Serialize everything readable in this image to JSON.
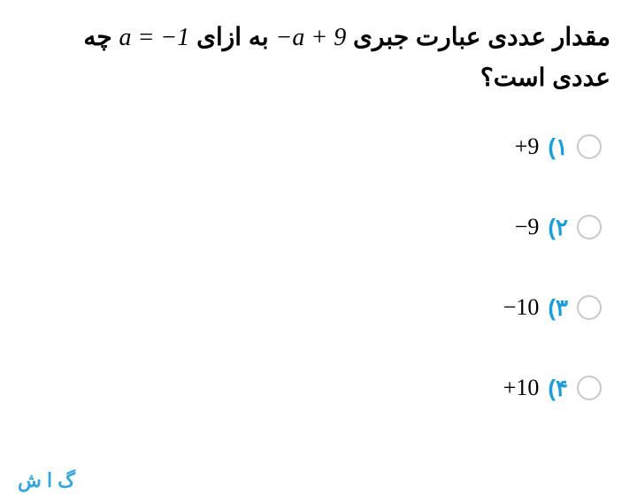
{
  "question": {
    "pre": "مقدار عددی عبارت جبری",
    "expr1": "−a + 9",
    "mid": "به ازای",
    "expr2": "a = −1",
    "post": "چه عددی است؟"
  },
  "options": [
    {
      "num": "۱)",
      "val": "+9"
    },
    {
      "num": "۲)",
      "val": "−9"
    },
    {
      "num": "۳)",
      "val": "−10"
    },
    {
      "num": "۴)",
      "val": "+10"
    }
  ],
  "colors": {
    "accent": "#1a9edb",
    "radio_border": "#c9c9c9",
    "text": "#000000",
    "background": "#ffffff"
  },
  "footer_fragment": "گ ا ش"
}
